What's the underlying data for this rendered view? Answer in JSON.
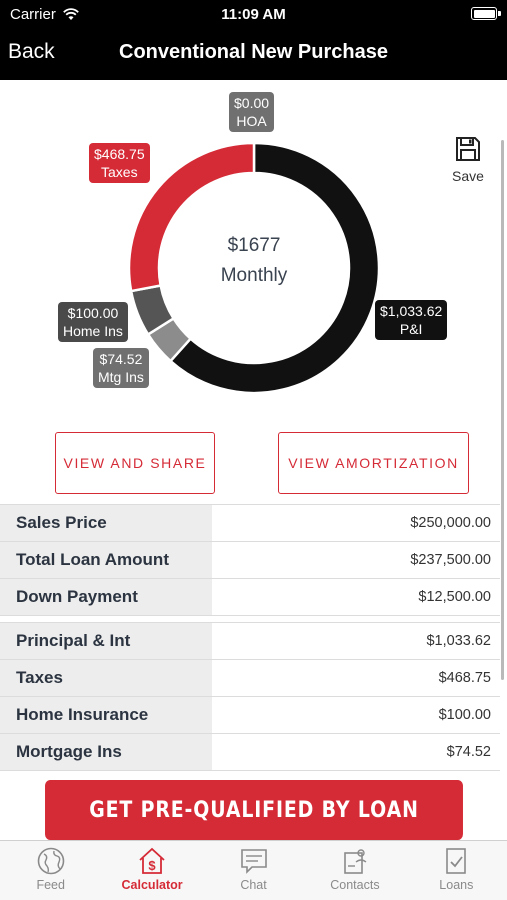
{
  "status_bar": {
    "carrier": "Carrier",
    "time": "11:09 AM"
  },
  "nav": {
    "back_label": "Back",
    "title": "Conventional New Purchase"
  },
  "save_label": "Save",
  "summary": {
    "amount": "$1677",
    "period": "Monthly"
  },
  "chart_data": {
    "type": "pie",
    "categories": [
      "P&I",
      "Mtg Ins",
      "Home Ins",
      "Taxes",
      "HOA"
    ],
    "values": [
      1033.62,
      74.52,
      100.0,
      468.75,
      0.0
    ],
    "colors": [
      "#111111",
      "#8c8c8c",
      "#555555",
      "#d52b37",
      "#777777"
    ],
    "labels": [
      {
        "amount": "$1,033.62",
        "name": "P&I"
      },
      {
        "amount": "$74.52",
        "name": "Mtg Ins"
      },
      {
        "amount": "$100.00",
        "name": "Home Ins"
      },
      {
        "amount": "$468.75",
        "name": "Taxes"
      },
      {
        "amount": "$0.00",
        "name": "HOA"
      }
    ]
  },
  "buttons": {
    "view_share": "VIEW AND SHARE",
    "view_amortization": "VIEW AMORTIZATION",
    "cta": "GET PRE-QUALIFIED BY LOAN"
  },
  "loan_rows": [
    {
      "label": "Sales Price",
      "value": "$250,000.00"
    },
    {
      "label": "Total Loan Amount",
      "value": "$237,500.00"
    },
    {
      "label": "Down Payment",
      "value": "$12,500.00"
    }
  ],
  "payment_rows": [
    {
      "label": "Principal & Int",
      "value": "$1,033.62"
    },
    {
      "label": "Taxes",
      "value": "$468.75"
    },
    {
      "label": "Home Insurance",
      "value": "$100.00"
    },
    {
      "label": "Mortgage Ins",
      "value": "$74.52"
    }
  ],
  "tabs": [
    {
      "label": "Feed",
      "icon": "globe-icon"
    },
    {
      "label": "Calculator",
      "icon": "house-dollar-icon"
    },
    {
      "label": "Chat",
      "icon": "chat-bubble-icon"
    },
    {
      "label": "Contacts",
      "icon": "contacts-icon"
    },
    {
      "label": "Loans",
      "icon": "document-check-icon"
    }
  ],
  "active_tab": "Calculator",
  "colors": {
    "brand_red": "#d52b37",
    "nav_bg": "#000000"
  }
}
